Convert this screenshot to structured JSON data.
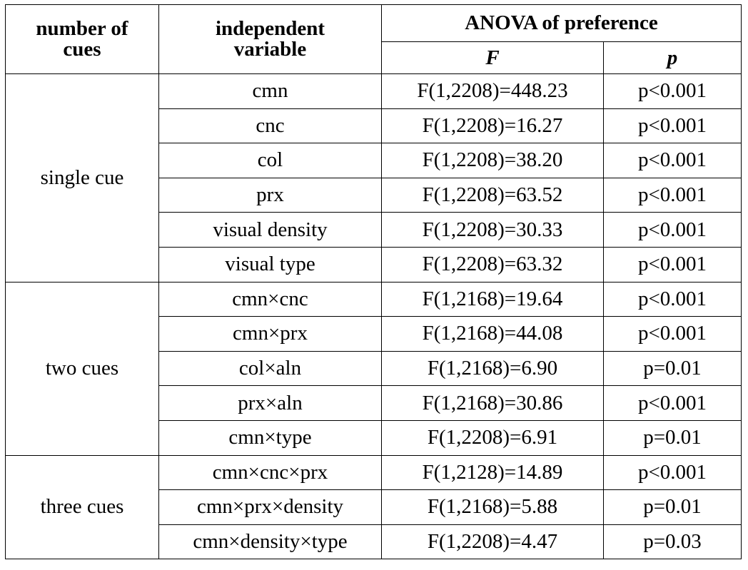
{
  "header": {
    "col_cues": "number of cues",
    "col_cues_line1": "number of",
    "col_cues_line2": "cues",
    "col_var_line1": "independent",
    "col_var_line2": "variable",
    "col_anova": "ANOVA of preference",
    "col_F": "F",
    "col_p": "p"
  },
  "groups": [
    {
      "label": "single cue",
      "rows": [
        {
          "variable": "cmn",
          "F": "F(1,2208)=448.23",
          "p": "p<0.001"
        },
        {
          "variable": "cnc",
          "F": "F(1,2208)=16.27",
          "p": "p<0.001"
        },
        {
          "variable": "col",
          "F": "F(1,2208)=38.20",
          "p": "p<0.001"
        },
        {
          "variable": "prx",
          "F": "F(1,2208)=63.52",
          "p": "p<0.001"
        },
        {
          "variable": "visual density",
          "F": "F(1,2208)=30.33",
          "p": "p<0.001"
        },
        {
          "variable": "visual type",
          "F": "F(1,2208)=63.32",
          "p": "p<0.001"
        }
      ]
    },
    {
      "label": "two cues",
      "rows": [
        {
          "variable": "cmn×cnc",
          "F": "F(1,2168)=19.64",
          "p": "p<0.001"
        },
        {
          "variable": "cmn×prx",
          "F": "F(1,2168)=44.08",
          "p": "p<0.001"
        },
        {
          "variable": "col×aln",
          "F": "F(1,2168)=6.90",
          "p": "p=0.01"
        },
        {
          "variable": "prx×aln",
          "F": "F(1,2168)=30.86",
          "p": "p<0.001"
        },
        {
          "variable": "cmn×type",
          "F": "F(1,2208)=6.91",
          "p": "p=0.01"
        }
      ]
    },
    {
      "label": "three cues",
      "rows": [
        {
          "variable": "cmn×cnc×prx",
          "F": "F(1,2128)=14.89",
          "p": "p<0.001"
        },
        {
          "variable": "cmn×prx×density",
          "F": "F(1,2168)=5.88",
          "p": "p=0.01"
        },
        {
          "variable": "cmn×density×type",
          "F": "F(1,2208)=4.47",
          "p": "p=0.03"
        }
      ]
    }
  ]
}
